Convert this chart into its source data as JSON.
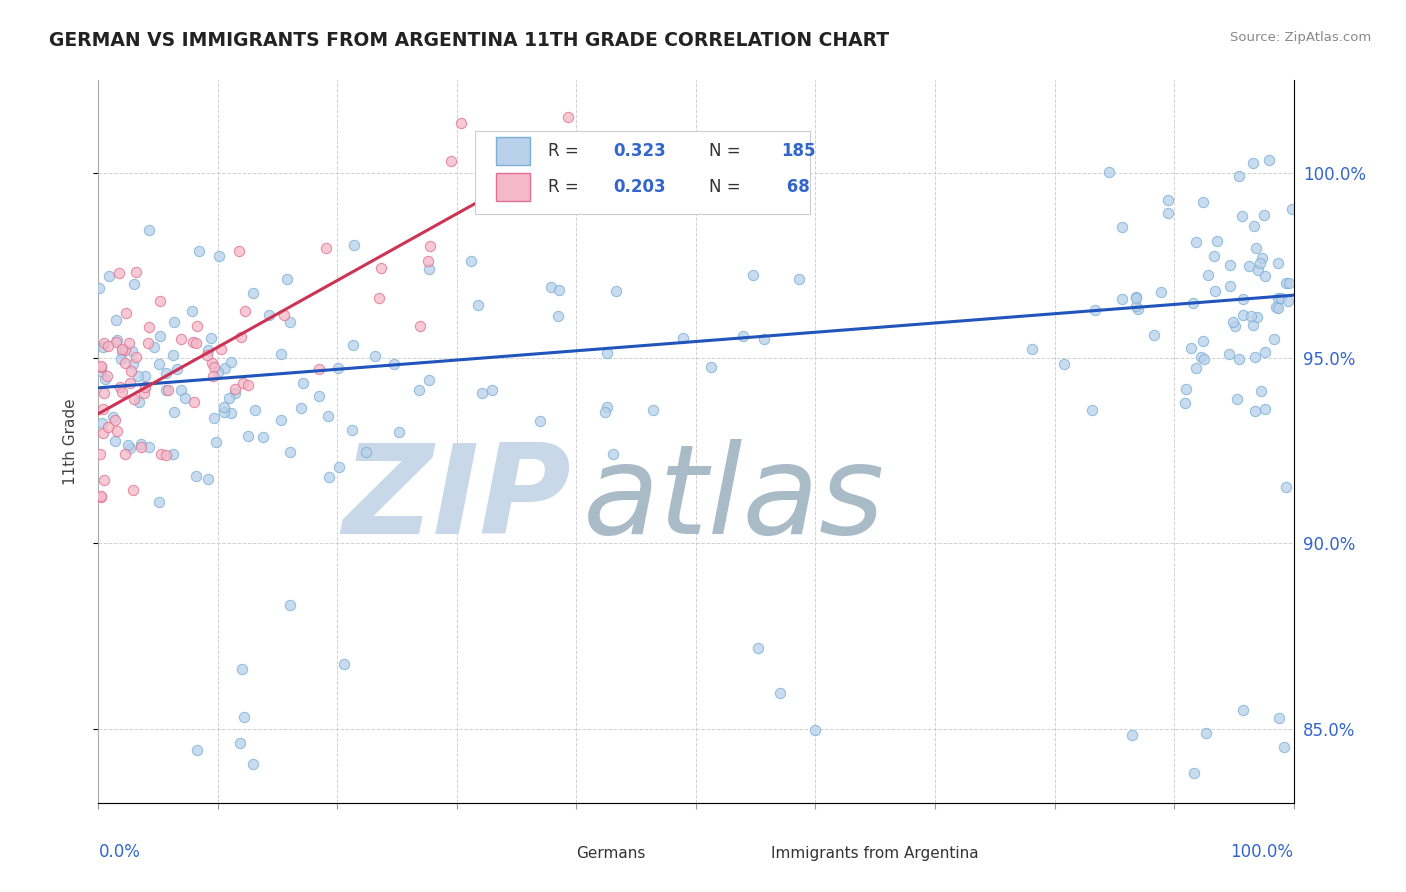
{
  "title": "GERMAN VS IMMIGRANTS FROM ARGENTINA 11TH GRADE CORRELATION CHART",
  "source": "Source: ZipAtlas.com",
  "ylabel": "11th Grade",
  "xlim": [
    0.0,
    100.0
  ],
  "ylim": [
    83.0,
    102.5
  ],
  "yticks": [
    85.0,
    90.0,
    95.0,
    100.0
  ],
  "ytick_labels": [
    "85.0%",
    "90.0%",
    "95.0%",
    "100.0%"
  ],
  "blue_R": 0.323,
  "blue_N": 185,
  "pink_R": 0.203,
  "pink_N": 68,
  "blue_color": "#b8d0ea",
  "blue_edge": "#7bafd4",
  "pink_color": "#f4b8c8",
  "pink_edge": "#e07090",
  "blue_line_color": "#2255bb",
  "pink_line_color": "#cc3355",
  "label_color": "#3366cc",
  "watermark_zip": "ZIP",
  "watermark_atlas": "atlas",
  "watermark_color_zip": "#c8d8e8",
  "watermark_color_atlas": "#aabbc8",
  "background": "#ffffff",
  "scatter_size": 55
}
